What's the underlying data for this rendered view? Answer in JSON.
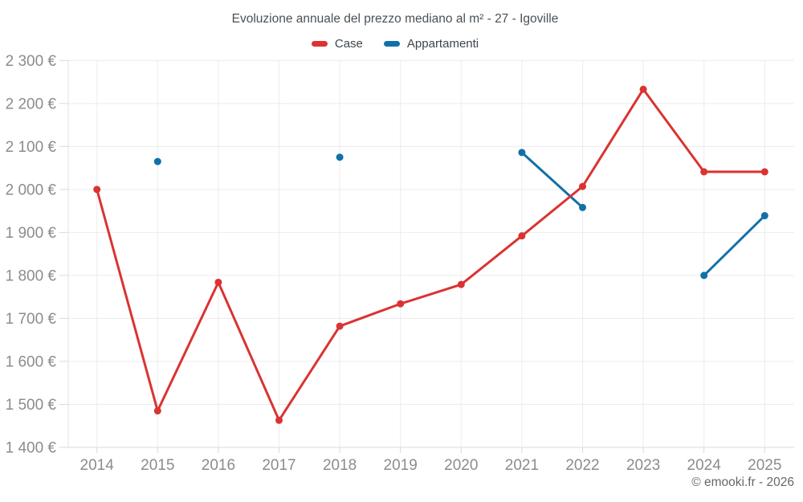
{
  "title": "Evoluzione annuale del prezzo mediano al m² - 27 - Igoville",
  "legend": [
    {
      "label": "Case",
      "color": "#da3332"
    },
    {
      "label": "Appartamenti",
      "color": "#1270a8"
    }
  ],
  "watermark": "© emooki.fr - 2026",
  "chart_data": {
    "type": "line",
    "title": "Evoluzione annuale del prezzo mediano al m² - 27 - Igoville",
    "xlabel": "",
    "ylabel": "",
    "categories": [
      "2014",
      "2015",
      "2016",
      "2017",
      "2018",
      "2019",
      "2020",
      "2021",
      "2022",
      "2023",
      "2024",
      "2025"
    ],
    "series": [
      {
        "name": "Case",
        "color": "#da3332",
        "values": [
          2000,
          1485,
          1784,
          1463,
          1682,
          1734,
          1779,
          1892,
          2007,
          2233,
          2041,
          2041
        ]
      },
      {
        "name": "Appartamenti",
        "color": "#1270a8",
        "values": [
          null,
          2065,
          null,
          null,
          2075,
          null,
          null,
          2086,
          1958,
          null,
          1800,
          1939
        ]
      }
    ],
    "ylim": [
      1400,
      2300
    ],
    "y_ticks": [
      {
        "value": 1400,
        "label": "1 400 €"
      },
      {
        "value": 1500,
        "label": "1 500 €"
      },
      {
        "value": 1600,
        "label": "1 600 €"
      },
      {
        "value": 1700,
        "label": "1 700 €"
      },
      {
        "value": 1800,
        "label": "1 800 €"
      },
      {
        "value": 1900,
        "label": "1 900 €"
      },
      {
        "value": 2000,
        "label": "2 000 €"
      },
      {
        "value": 2100,
        "label": "2 100 €"
      },
      {
        "value": 2200,
        "label": "2 200 €"
      },
      {
        "value": 2300,
        "label": "2 300 €"
      }
    ],
    "grid": true,
    "legend_position": "top",
    "currency_suffix": "€"
  }
}
